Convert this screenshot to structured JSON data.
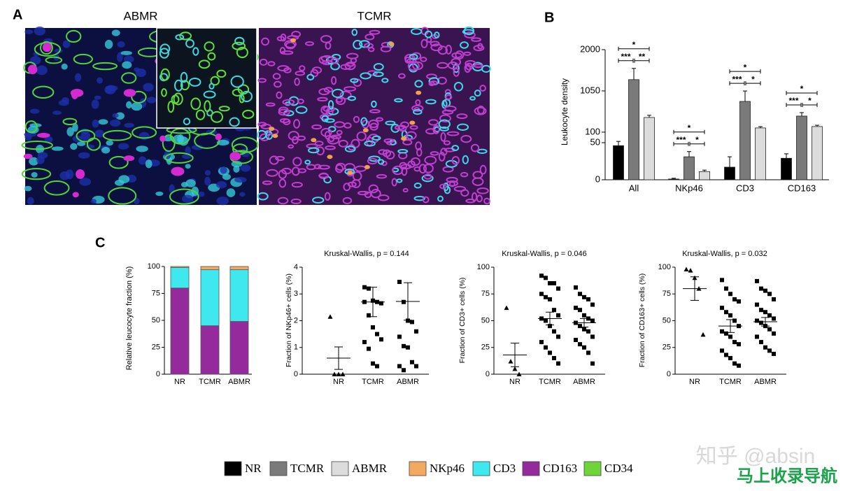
{
  "panel_labels": [
    "A",
    "B",
    "C"
  ],
  "panel_a": {
    "titles": [
      "ABMR",
      "TCMR"
    ]
  },
  "chart_data": [
    {
      "type": "bar",
      "ylabel": "Leukocyte density",
      "categories": [
        "All",
        "NKp46",
        "CD3",
        "CD163"
      ],
      "series": [
        {
          "name": "NR",
          "color": "#000000",
          "values": [
            46,
            1,
            17,
            29
          ],
          "errors": [
            10,
            1,
            14,
            6
          ]
        },
        {
          "name": "TCMR",
          "color": "#7a7a7a",
          "values": [
            1310,
            31,
            808,
            470
          ],
          "errors": [
            258,
            7,
            240,
            80
          ]
        },
        {
          "name": "ABMR",
          "color": "#dcdcdc",
          "values": [
            438,
            11,
            197,
            229
          ],
          "errors": [
            50,
            2,
            30,
            30
          ]
        }
      ],
      "ylim": [
        0,
        2000
      ],
      "yticks": [
        0,
        50,
        100,
        1050,
        2000
      ],
      "significance": [
        [
          "*",
          "***",
          "**"
        ],
        [
          "*",
          "***",
          "*"
        ],
        [
          "*",
          "***",
          "*"
        ],
        [
          "*",
          "***",
          "*"
        ]
      ]
    },
    {
      "type": "stacked-bar",
      "ylabel": "Relative leucocyte fraction (%)",
      "categories": [
        "NR",
        "TCMR",
        "ABMR"
      ],
      "series": [
        {
          "name": "CD163",
          "color": "#952a9c",
          "values": [
            80,
            45,
            49
          ]
        },
        {
          "name": "CD3",
          "color": "#3fe8ee",
          "values": [
            19,
            52,
            48
          ]
        },
        {
          "name": "NKp46",
          "color": "#f3a95f",
          "values": [
            1,
            3,
            3
          ]
        }
      ],
      "ylim": [
        0,
        100
      ],
      "yticks": [
        0,
        25,
        50,
        75,
        100
      ]
    },
    {
      "type": "strip",
      "title": "Kruskal-Wallis, p = 0.144",
      "ylabel": "Fraction of NKp46+ cells (%)",
      "categories": [
        "NR",
        "TCMR",
        "ABMR"
      ],
      "markers": [
        "triangle",
        "square",
        "square"
      ],
      "points": [
        [
          2.15,
          0,
          0,
          0
        ],
        [
          3.25,
          3.2,
          2.75,
          2.7,
          2.65,
          2.7,
          2.2,
          1.75,
          1.5,
          1.3,
          1.2,
          0.95,
          0.4,
          0.3
        ],
        [
          3.45,
          2.7,
          2.0,
          1.95,
          1.6,
          1.4,
          1.05,
          1.0,
          0.45,
          0.3,
          0.3,
          0.15
        ]
      ],
      "means": [
        0.6,
        2.7,
        2.72
      ],
      "errors": [
        0.42,
        0.55,
        0.7
      ],
      "ylim": [
        0,
        4
      ],
      "yticks": [
        0,
        1,
        2,
        3,
        4
      ]
    },
    {
      "type": "strip",
      "title": "Kruskal-Wallis, p = 0.046",
      "ylabel": "Fraction of CD3+ cells (%)",
      "categories": [
        "NR",
        "TCMR",
        "ABMR"
      ],
      "markers": [
        "triangle",
        "square",
        "square"
      ],
      "points": [
        [
          62,
          12,
          5,
          0
        ],
        [
          92,
          90,
          85,
          85,
          80,
          75,
          72,
          70,
          60,
          55,
          52,
          50,
          45,
          40,
          35,
          30,
          25,
          20,
          15,
          10
        ],
        [
          81,
          75,
          72,
          70,
          65,
          62,
          60,
          55,
          52,
          50,
          48,
          45,
          42,
          40,
          35,
          32,
          28,
          25,
          20,
          10
        ]
      ],
      "means": [
        18,
        52,
        48
      ],
      "errors": [
        11,
        6,
        4
      ],
      "ylim": [
        0,
        100
      ],
      "yticks": [
        0,
        25,
        50,
        75,
        100
      ]
    },
    {
      "type": "strip",
      "title": "Kruskal-Wallis, p = 0.032",
      "ylabel": "Fraction of CD163+ cells (%)",
      "categories": [
        "NR",
        "TCMR",
        "ABMR"
      ],
      "markers": [
        "triangle",
        "square",
        "square"
      ],
      "points": [
        [
          98,
          97,
          90,
          80,
          37
        ],
        [
          88,
          80,
          75,
          70,
          68,
          62,
          58,
          55,
          50,
          45,
          40,
          38,
          35,
          30,
          28,
          22,
          18,
          15,
          10,
          8
        ],
        [
          87,
          80,
          78,
          75,
          70,
          65,
          60,
          58,
          55,
          52,
          50,
          48,
          45,
          42,
          38,
          35,
          30,
          25,
          22,
          19
        ]
      ],
      "means": [
        80,
        45,
        49
      ],
      "errors": [
        11,
        6,
        4
      ],
      "ylim": [
        0,
        100
      ],
      "yticks": [
        0,
        25,
        50,
        75,
        100
      ]
    }
  ],
  "legend": [
    {
      "label": "NR",
      "color": "#000000"
    },
    {
      "label": "TCMR",
      "color": "#7a7a7a"
    },
    {
      "label": "ABMR",
      "color": "#dcdcdc"
    },
    {
      "label": "NKp46",
      "color": "#f3a95f"
    },
    {
      "label": "CD3",
      "color": "#3fe8ee"
    },
    {
      "label": "CD163",
      "color": "#952a9c"
    },
    {
      "label": "CD34",
      "color": "#6fd33a"
    }
  ],
  "watermark": [
    "知乎 @absin",
    "马上收录导航"
  ]
}
